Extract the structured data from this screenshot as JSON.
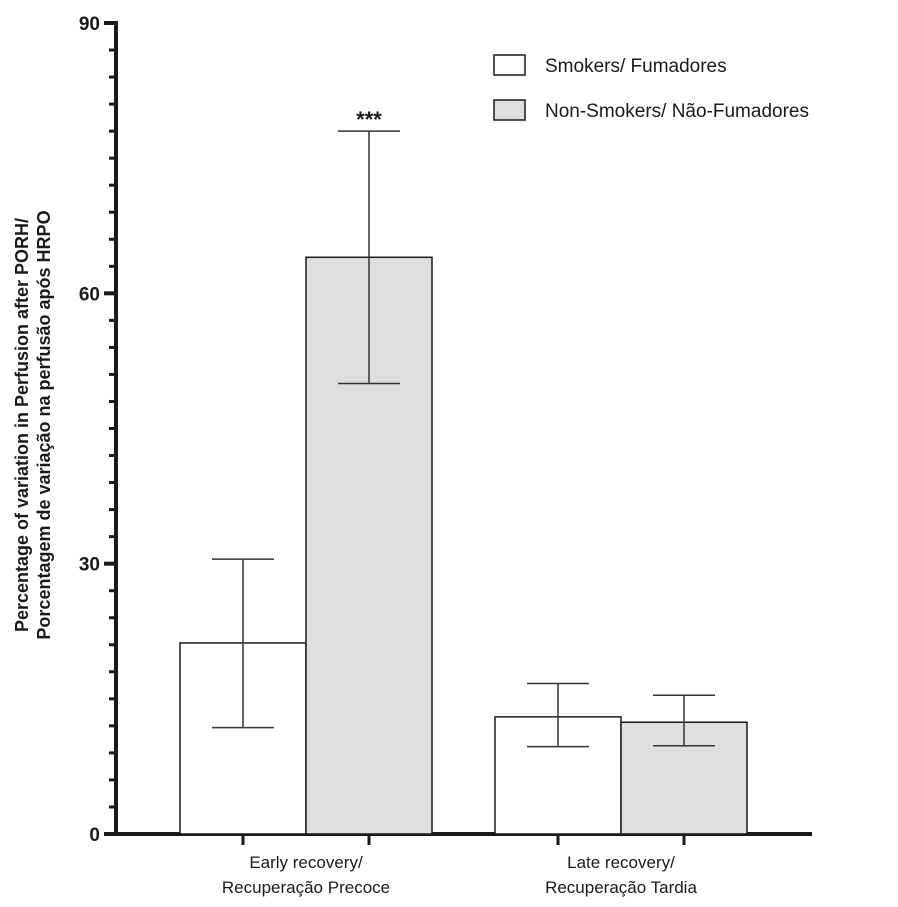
{
  "chart_data": {
    "type": "bar",
    "ylabel_lines": [
      "Percentage of variation in Perfusion after PORH/",
      "Porcentagem de variação na perfusão após HRPO"
    ],
    "ylim": [
      0,
      90
    ],
    "yticks": [
      0,
      30,
      60,
      90
    ],
    "categories": [
      {
        "lines": [
          "Early recovery/",
          "Recuperação Precoce"
        ]
      },
      {
        "lines": [
          "Late recovery/",
          "Recuperação Tardia"
        ]
      }
    ],
    "series": [
      {
        "name": "Smokers/ Fumadores",
        "color": "#ffffff",
        "values": [
          21.2,
          13.0
        ],
        "err_low": [
          11.8,
          9.7
        ],
        "err_high": [
          30.5,
          16.7
        ]
      },
      {
        "name": "Non-Smokers/ Não-Fumadores",
        "color": "#dedede",
        "values": [
          64.0,
          12.4
        ],
        "err_low": [
          50.0,
          9.8
        ],
        "err_high": [
          78.0,
          15.4
        ]
      }
    ],
    "annotations": [
      {
        "text": "***",
        "category": 0,
        "series": 1
      }
    ],
    "legend_position": "top-right"
  }
}
